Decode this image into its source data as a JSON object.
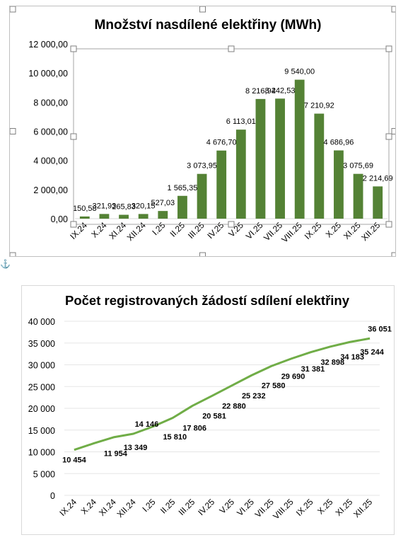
{
  "chart_data": [
    {
      "type": "bar",
      "title": "Množství nasdílené elektřiny (MWh)",
      "categories": [
        "IX.24",
        "X.24",
        "XI.24",
        "XII.24",
        "I.25",
        "II.25",
        "III.25",
        "IV.25",
        "V.25",
        "VI.25",
        "VII.25",
        "VIII.25",
        "IX.25",
        "X.25",
        "XI.25",
        "XII.25"
      ],
      "values": [
        150.58,
        321.93,
        265.83,
        320.15,
        527.03,
        1565.35,
        3073.95,
        4676.7,
        6113.01,
        8216.94,
        8242.53,
        9540.0,
        7210.92,
        4686.96,
        3075.69,
        2214.69
      ],
      "value_labels": [
        "150,58",
        "321,93",
        "265,83",
        "320,15",
        "527,03",
        "1 565,35",
        "3 073,95",
        "4 676,70",
        "6 113,01",
        "8 216,94",
        "8 242,53",
        "9 540,00",
        "7 210,92",
        "4 686,96",
        "3 075,69",
        "2 214,69"
      ],
      "ylim": [
        0,
        12000
      ],
      "yticks": [
        "0,00",
        "2 000,00",
        "4 000,00",
        "6 000,00",
        "8 000,00",
        "10 000,00",
        "12 000,00"
      ],
      "xlabel": "",
      "ylabel": "",
      "grid": false,
      "color": "#548235"
    },
    {
      "type": "line",
      "title": "Počet registrovaných žádostí sdílení elektřiny",
      "categories": [
        "IX.24",
        "X.24",
        "XI.24",
        "XII.24",
        "I.25",
        "II.25",
        "III.25",
        "IV.25",
        "V.25",
        "VI.25",
        "VII.25",
        "VIII.25",
        "IX.25",
        "X.25",
        "XI.25",
        "XII.25"
      ],
      "values": [
        10454,
        11954,
        13349,
        14146,
        15810,
        17806,
        20581,
        22880,
        25232,
        27580,
        29690,
        31381,
        32898,
        34183,
        35244,
        36051
      ],
      "value_labels": [
        "10 454",
        "11 954",
        "13 349",
        "14 146",
        "15 810",
        "17 806",
        "20 581",
        "22 880",
        "25 232",
        "27 580",
        "29 690",
        "31 381",
        "32 898",
        "34 183",
        "35 244",
        "36 051"
      ],
      "ylim": [
        0,
        40000
      ],
      "yticks": [
        "0",
        "5 000",
        "10 000",
        "15 000",
        "20 000",
        "25 000",
        "30 000",
        "35 000",
        "40 000"
      ],
      "xlabel": "",
      "ylabel": "",
      "grid": true,
      "color": "#70ad47"
    }
  ],
  "anchor_icon": "anchor-icon"
}
